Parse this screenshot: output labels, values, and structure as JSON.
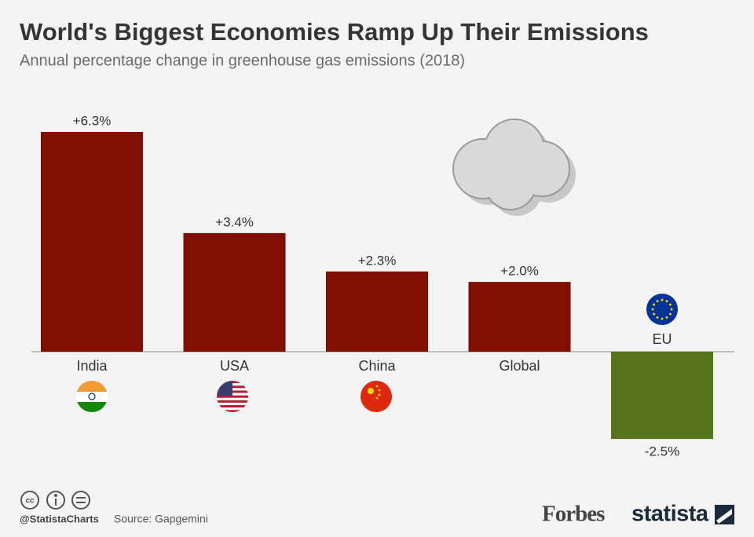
{
  "chart_data": {
    "type": "bar",
    "title": "World's Biggest Economies Ramp Up Their Emissions",
    "subtitle": "Annual percentage change in greenhouse gas emissions (2018)",
    "categories": [
      "India",
      "USA",
      "China",
      "Global",
      "EU"
    ],
    "values": [
      6.3,
      3.4,
      2.3,
      2.0,
      -2.5
    ],
    "value_labels": [
      "+6.3%",
      "+3.4%",
      "+2.3%",
      "+2.0%",
      "-2.5%"
    ],
    "colors": [
      "#800f00",
      "#800f00",
      "#800f00",
      "#800f00",
      "#56741b"
    ],
    "handle": "@StatistaCharts",
    "source": "Source: Gapgemini",
    "brand_left": "Forbes",
    "brand_right": "statista"
  }
}
